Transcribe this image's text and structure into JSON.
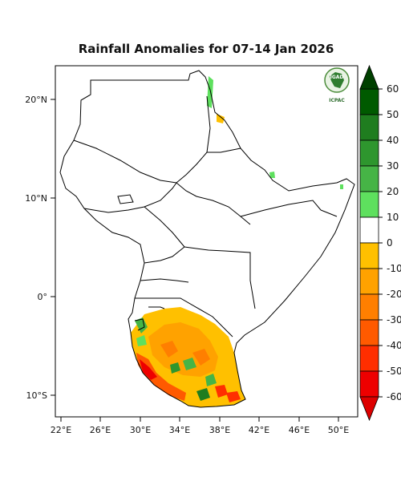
{
  "title": "Rainfall Anomalies for 07-14 Jan 2026",
  "logo": {
    "top_text": "IGAD",
    "bottom_text": "ICPAC"
  },
  "lon_ticks": [
    "22°E",
    "26°E",
    "30°E",
    "34°E",
    "38°E",
    "42°E",
    "46°E",
    "50°E"
  ],
  "lat_ticks": [
    "20°N",
    "10°N",
    "0°",
    "10°S"
  ],
  "colorbar": {
    "labels": [
      "60",
      "50",
      "40",
      "30",
      "20",
      "10",
      "0",
      "-10",
      "-20",
      "-30",
      "-40",
      "-50",
      "-60"
    ],
    "colors": [
      "#005a00",
      "#1f7d1f",
      "#2e962e",
      "#46b446",
      "#5ee05e",
      "#ffffff",
      "#ffc000",
      "#ffa200",
      "#ff7f00",
      "#ff5a00",
      "#ff2e00",
      "#ee0000"
    ],
    "top_arrow_color": "#004000",
    "bottom_arrow_color": "#dd0000"
  }
}
